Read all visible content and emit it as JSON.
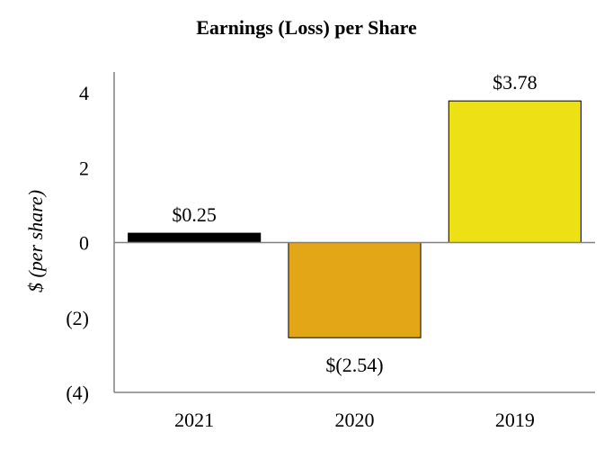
{
  "chart_data": {
    "type": "bar",
    "title": "Earnings (Loss) per Share",
    "xlabel": "",
    "ylabel": "$ (per share)",
    "categories": [
      "2021",
      "2020",
      "2019"
    ],
    "values": [
      0.25,
      -2.54,
      3.78
    ],
    "data_labels": [
      "$0.25",
      "$(2.54)",
      "$3.78"
    ],
    "bar_colors": [
      "#000000",
      "#e3a616",
      "#ede015"
    ],
    "ylim": [
      -4,
      4
    ],
    "y_ticks": [
      4,
      2,
      0,
      -2,
      -4
    ],
    "y_tick_labels": [
      "4",
      "2",
      "0",
      "(2)",
      "(4)"
    ],
    "grid": false,
    "legend": "none"
  }
}
